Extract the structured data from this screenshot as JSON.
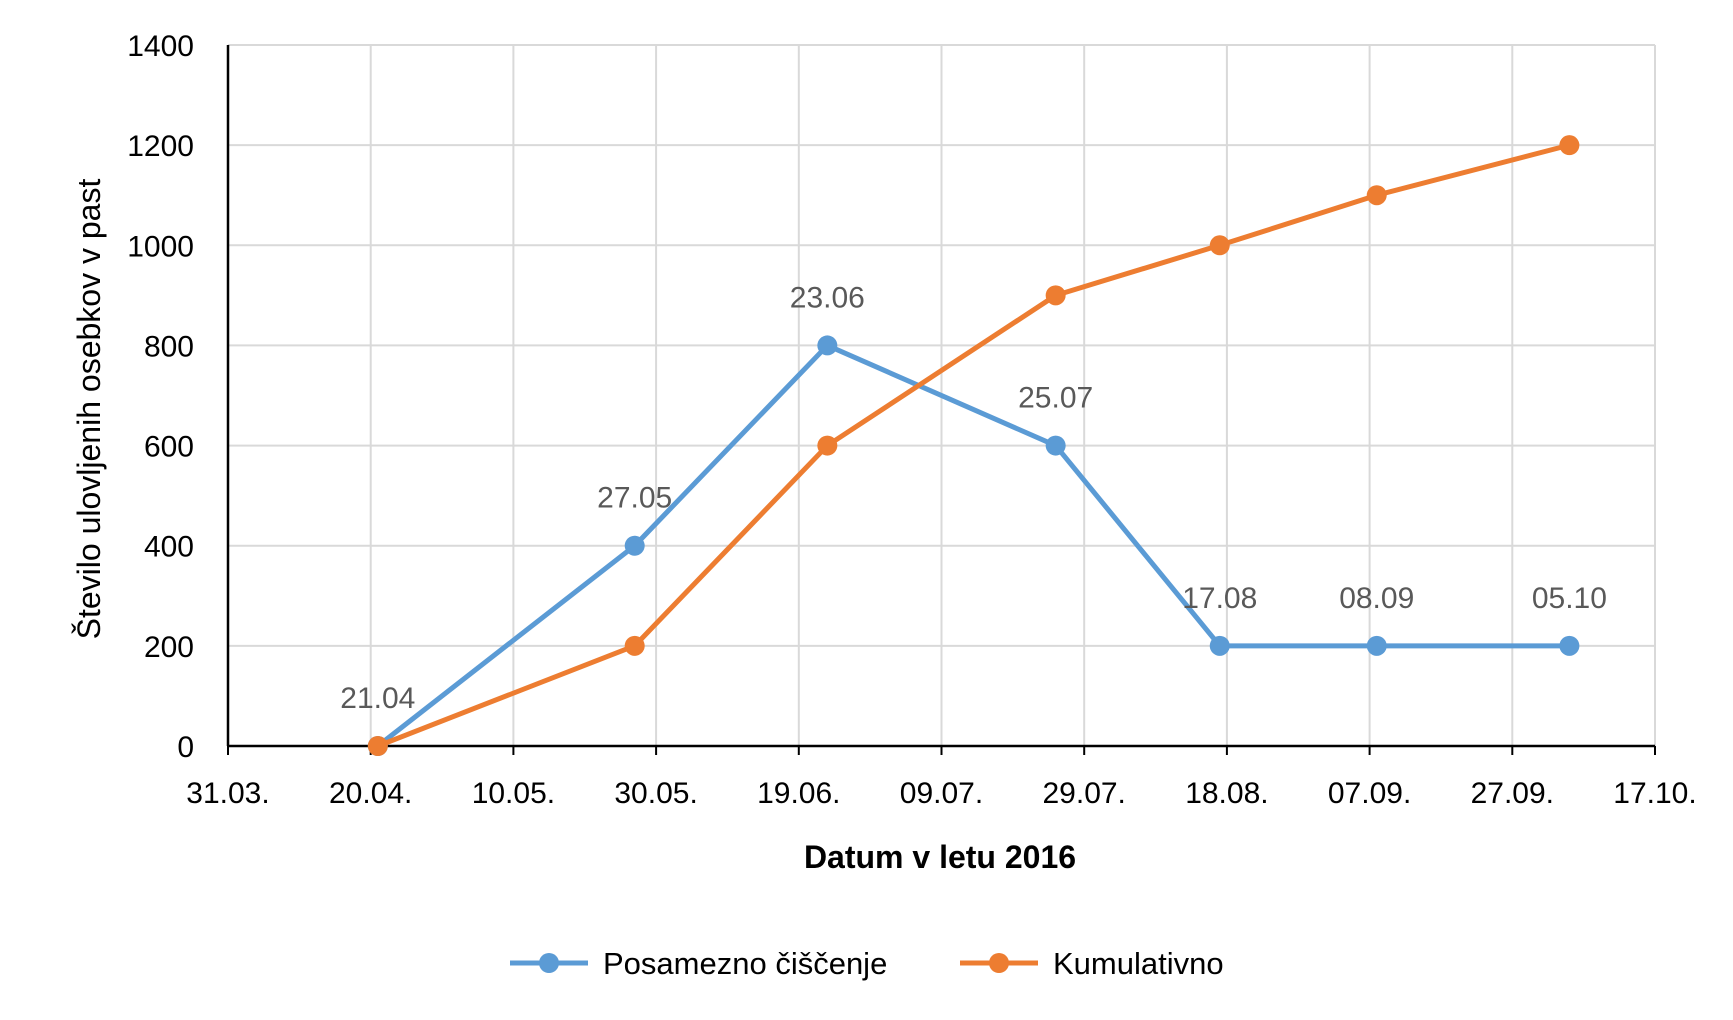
{
  "chart_data": {
    "type": "scatter",
    "title": "",
    "xlabel": "Datum v letu 2016",
    "ylabel": "Število ulovljenih osebkov v past",
    "ylim": [
      0,
      1400
    ],
    "yticks": [
      0,
      200,
      400,
      600,
      800,
      1000,
      1200,
      1400
    ],
    "xlim": [
      "2016-03-31",
      "2016-10-17"
    ],
    "xtick_labels": [
      "31.03.",
      "20.04.",
      "10.05.",
      "30.05.",
      "19.06.",
      "09.07.",
      "29.07.",
      "18.08.",
      "07.09.",
      "27.09.",
      "17.10."
    ],
    "grid": true,
    "legend_position": "bottom",
    "series": [
      {
        "name": "Posamezno čiščenje",
        "color": "#5B9BD5",
        "x": [
          "2016-04-21",
          "2016-05-27",
          "2016-06-23",
          "2016-07-25",
          "2016-08-17",
          "2016-09-08",
          "2016-10-05"
        ],
        "y": [
          0,
          400,
          800,
          600,
          200,
          200,
          200
        ],
        "labels": [
          "21.04",
          "27.05",
          "23.06",
          "25.07",
          "17.08",
          "08.09",
          "05.10"
        ]
      },
      {
        "name": "Kumulativno",
        "color": "#ED7D31",
        "x": [
          "2016-04-21",
          "2016-05-27",
          "2016-06-23",
          "2016-07-25",
          "2016-08-17",
          "2016-09-08",
          "2016-10-05"
        ],
        "y": [
          0,
          200,
          600,
          900,
          1000,
          1100,
          1200
        ]
      }
    ]
  }
}
